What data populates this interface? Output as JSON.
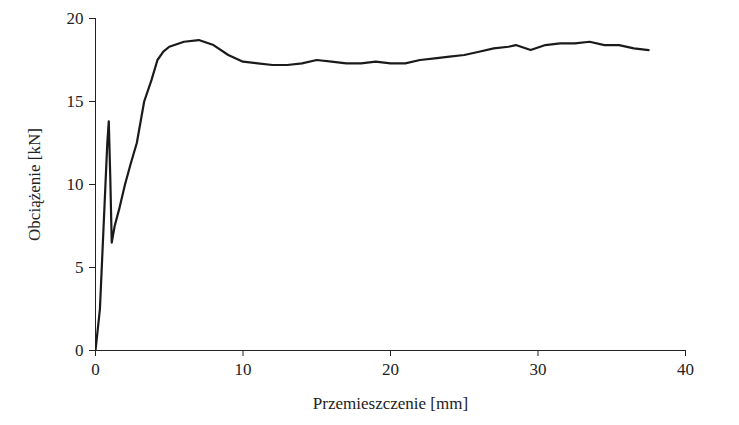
{
  "chart_data": {
    "type": "line",
    "x_label": "Przemieszczenie [mm]",
    "y_label": "Obciążenie [kN]",
    "x": [
      0,
      0.3,
      0.6,
      0.8,
      0.9,
      1.0,
      1.1,
      1.3,
      1.6,
      2.0,
      2.4,
      2.8,
      3.3,
      3.8,
      4.2,
      4.6,
      5.0,
      6.0,
      7.0,
      8.0,
      9.0,
      10.0,
      11.0,
      12.0,
      13.0,
      14.0,
      15.0,
      16.0,
      17.0,
      18.0,
      19.0,
      20.0,
      21.0,
      22.0,
      23.0,
      24.0,
      25.0,
      26.0,
      27.0,
      28.0,
      28.5,
      29.5,
      30.5,
      31.5,
      32.5,
      33.5,
      34.5,
      35.5,
      36.5,
      37.5
    ],
    "values": [
      0,
      2.5,
      8.5,
      12.5,
      13.8,
      10.5,
      6.5,
      7.5,
      8.5,
      10.0,
      11.3,
      12.5,
      15.0,
      16.3,
      17.5,
      18.0,
      18.3,
      18.6,
      18.7,
      18.4,
      17.8,
      17.4,
      17.3,
      17.2,
      17.2,
      17.3,
      17.5,
      17.4,
      17.3,
      17.3,
      17.4,
      17.3,
      17.3,
      17.5,
      17.6,
      17.7,
      17.8,
      18.0,
      18.2,
      18.3,
      18.4,
      18.1,
      18.4,
      18.5,
      18.5,
      18.6,
      18.4,
      18.4,
      18.2,
      18.1
    ],
    "color": "#1a1a1a",
    "xlim": [
      0,
      40
    ],
    "ylim": [
      0,
      20
    ],
    "xticks": [
      0,
      10,
      20,
      30,
      40
    ],
    "yticks": [
      0,
      5,
      10,
      15,
      20
    ],
    "grid": false
  }
}
